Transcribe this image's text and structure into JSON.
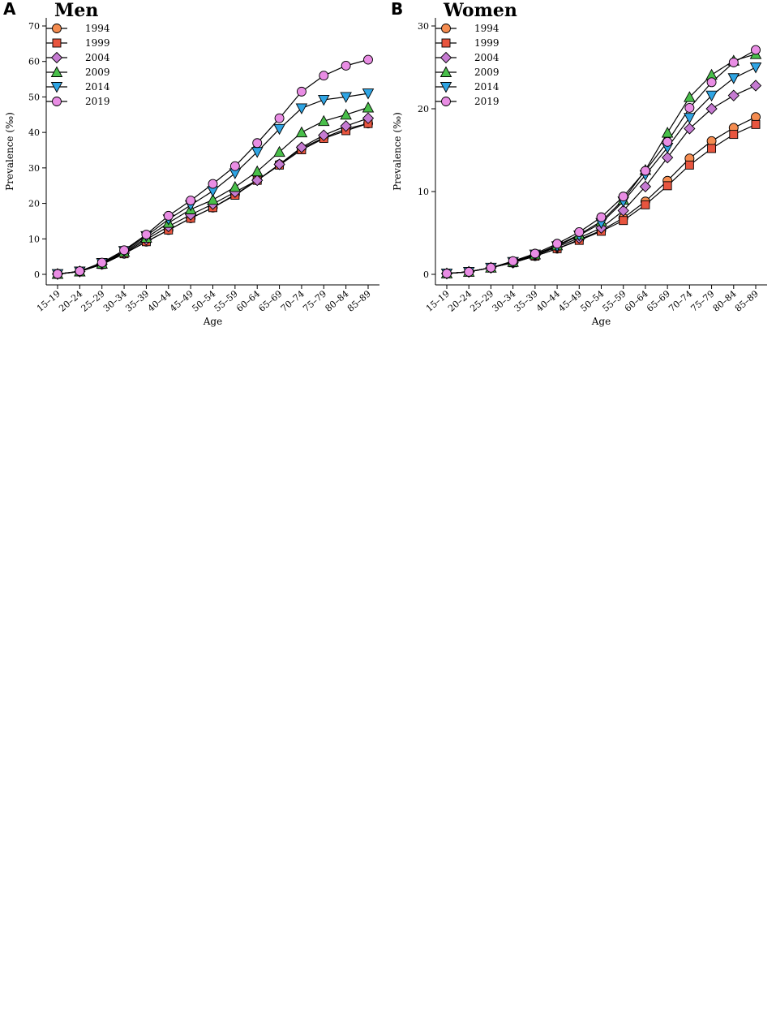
{
  "chart_data": [
    {
      "panel": "A",
      "title": "Men",
      "type": "line",
      "xlabel": "Age",
      "ylabel": "Prevalence (‰)",
      "ylim": [
        0,
        70
      ],
      "yticks": [
        0,
        10,
        20,
        30,
        40,
        50,
        60,
        70
      ],
      "legend_position": "top-left",
      "categories": [
        "15–19",
        "20–24",
        "25–29",
        "30–34",
        "35–39",
        "40–44",
        "45–49",
        "50–54",
        "55–59",
        "60–64",
        "65–69",
        "70–74",
        "75–79",
        "80–84",
        "85–89"
      ],
      "series": [
        {
          "name": "1994",
          "color": "#F58C50",
          "marker": "circle",
          "values": [
            0.1,
            0.8,
            2.8,
            5.8,
            9.2,
            12.5,
            15.8,
            18.8,
            22.5,
            26.5,
            31,
            35.5,
            38.5,
            41,
            42.5
          ]
        },
        {
          "name": "1999",
          "color": "#E8553F",
          "marker": "square",
          "values": [
            0.1,
            0.8,
            2.8,
            5.8,
            9.2,
            12.5,
            15.8,
            18.8,
            22.3,
            26.5,
            30.8,
            35.1,
            38.3,
            40.5,
            42.5
          ]
        },
        {
          "name": "2004",
          "color": "#C67BD2",
          "marker": "diamond",
          "values": [
            0.1,
            0.8,
            2.9,
            6,
            9.8,
            13.5,
            16.8,
            19.8,
            23.2,
            26.5,
            31,
            35.8,
            39.2,
            41.8,
            44
          ]
        },
        {
          "name": "2009",
          "color": "#49BF4A",
          "marker": "triangle-up",
          "values": [
            0.1,
            0.8,
            3,
            6.3,
            10.3,
            14.5,
            18.3,
            21,
            24.6,
            29,
            34.5,
            40,
            43.2,
            45,
            47
          ]
        },
        {
          "name": "2014",
          "color": "#2FA5E4",
          "marker": "triangle-down",
          "values": [
            0.1,
            0.8,
            3.2,
            6.6,
            10.8,
            15.5,
            19.5,
            23.5,
            28.5,
            34.5,
            41,
            46.8,
            49.2,
            50,
            51
          ]
        },
        {
          "name": "2019",
          "color": "#E98DE4",
          "marker": "circle",
          "values": [
            0.1,
            0.9,
            3.3,
            6.8,
            11.2,
            16.5,
            20.8,
            25.5,
            30.5,
            37,
            44,
            51.5,
            56,
            58.8,
            60.5
          ]
        }
      ]
    },
    {
      "panel": "B",
      "title": "Women",
      "type": "line",
      "xlabel": "Age",
      "ylabel": "Prevalence (‰)",
      "ylim": [
        0,
        30
      ],
      "yticks": [
        0,
        10,
        20,
        30
      ],
      "legend_position": "top-left",
      "categories": [
        "15–19",
        "20–24",
        "25–29",
        "30–34",
        "35–39",
        "40–44",
        "45–49",
        "50–54",
        "55–59",
        "60–64",
        "65–69",
        "70–74",
        "75–79",
        "80–84",
        "85–89"
      ],
      "series": [
        {
          "name": "1994",
          "color": "#F58C50",
          "marker": "circle",
          "values": [
            0.1,
            0.3,
            0.8,
            1.4,
            2.2,
            3.1,
            4.2,
            5.3,
            6.8,
            8.8,
            11.3,
            14,
            16.1,
            17.7,
            19
          ]
        },
        {
          "name": "1999",
          "color": "#E8553F",
          "marker": "square",
          "values": [
            0.1,
            0.3,
            0.8,
            1.4,
            2.2,
            3.1,
            4.1,
            5.2,
            6.5,
            8.4,
            10.7,
            13.2,
            15.2,
            16.9,
            18.1
          ]
        },
        {
          "name": "2004",
          "color": "#C67BD2",
          "marker": "diamond",
          "values": [
            0.1,
            0.3,
            0.8,
            1.4,
            2.3,
            3.3,
            4.4,
            5.6,
            7.7,
            10.6,
            14.1,
            17.6,
            20,
            21.6,
            22.8
          ]
        },
        {
          "name": "2009",
          "color": "#49BF4A",
          "marker": "triangle-up",
          "values": [
            0.1,
            0.3,
            0.8,
            1.5,
            2.4,
            3.5,
            4.8,
            6.4,
            9,
            12.6,
            17.1,
            21.4,
            24.1,
            25.8,
            26.6
          ]
        },
        {
          "name": "2014",
          "color": "#2FA5E4",
          "marker": "triangle-down",
          "values": [
            0.1,
            0.3,
            0.8,
            1.5,
            2.4,
            3.4,
            4.7,
            6.2,
            8.8,
            12,
            15.3,
            18.9,
            21.6,
            23.7,
            25
          ]
        },
        {
          "name": "2019",
          "color": "#E98DE4",
          "marker": "circle",
          "values": [
            0.1,
            0.3,
            0.8,
            1.6,
            2.5,
            3.7,
            5.1,
            6.9,
            9.4,
            12.5,
            16,
            20.1,
            23.2,
            25.6,
            27.1
          ]
        }
      ]
    }
  ]
}
